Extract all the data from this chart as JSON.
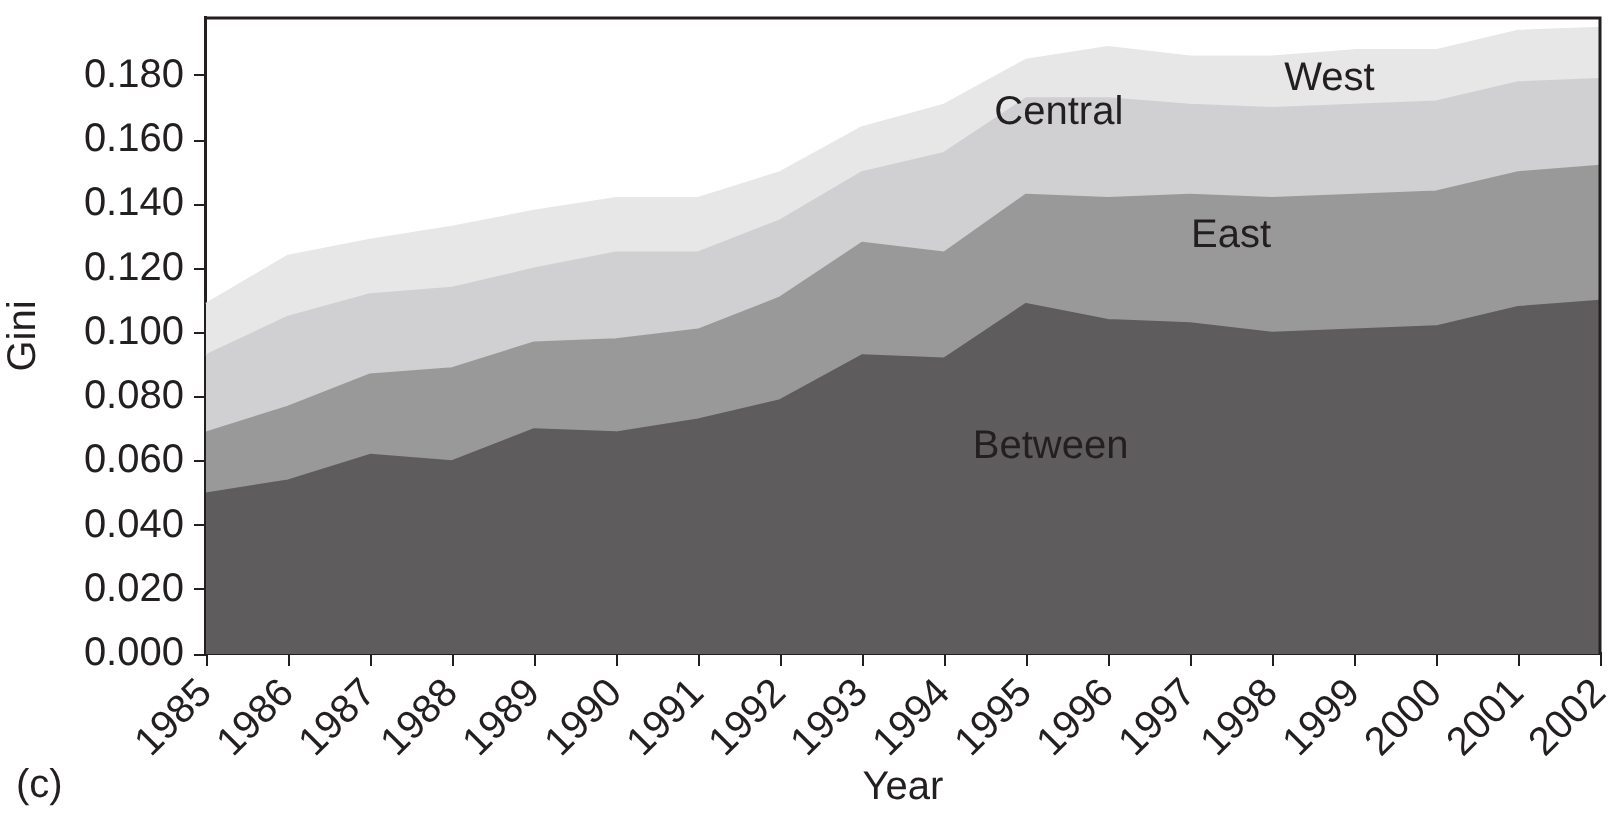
{
  "chart_data": {
    "type": "area",
    "stacked": true,
    "xlabel": "Year",
    "ylabel": "Gini",
    "categories": [
      "1985",
      "1986",
      "1987",
      "1988",
      "1989",
      "1990",
      "1991",
      "1992",
      "1993",
      "1994",
      "1995",
      "1996",
      "1997",
      "1998",
      "1999",
      "2000",
      "2001",
      "2002"
    ],
    "series": [
      {
        "name": "Between",
        "color": "#5e5c5d",
        "values": [
          0.05,
          0.054,
          0.062,
          0.06,
          0.07,
          0.069,
          0.073,
          0.079,
          0.093,
          0.092,
          0.109,
          0.104,
          0.103,
          0.1,
          0.101,
          0.102,
          0.108,
          0.11
        ]
      },
      {
        "name": "East",
        "color": "#999999",
        "values": [
          0.019,
          0.023,
          0.025,
          0.029,
          0.027,
          0.029,
          0.028,
          0.032,
          0.035,
          0.033,
          0.034,
          0.038,
          0.04,
          0.042,
          0.042,
          0.042,
          0.042,
          0.042
        ]
      },
      {
        "name": "Central",
        "color": "#d0d0d2",
        "values": [
          0.024,
          0.028,
          0.025,
          0.025,
          0.023,
          0.027,
          0.024,
          0.024,
          0.022,
          0.031,
          0.03,
          0.031,
          0.028,
          0.028,
          0.028,
          0.028,
          0.028,
          0.027
        ]
      },
      {
        "name": "West",
        "color": "#e7e7e7",
        "values": [
          0.016,
          0.019,
          0.017,
          0.019,
          0.018,
          0.017,
          0.017,
          0.015,
          0.014,
          0.015,
          0.012,
          0.016,
          0.015,
          0.016,
          0.017,
          0.016,
          0.016,
          0.016
        ]
      }
    ],
    "ylim": [
      0,
      0.198
    ],
    "yticks": [
      {
        "value": 0,
        "label": "0.000"
      },
      {
        "value": 0.02,
        "label": "0.020"
      },
      {
        "value": 0.04,
        "label": "0.040"
      },
      {
        "value": 0.06,
        "label": "0.060"
      },
      {
        "value": 0.08,
        "label": "0.080"
      },
      {
        "value": 0.1,
        "label": "0.100"
      },
      {
        "value": 0.12,
        "label": "0.120"
      },
      {
        "value": 0.14,
        "label": "0.140"
      },
      {
        "value": 0.16,
        "label": "0.160"
      },
      {
        "value": 0.18,
        "label": "0.180"
      }
    ],
    "annotations": [
      "(c)"
    ]
  }
}
